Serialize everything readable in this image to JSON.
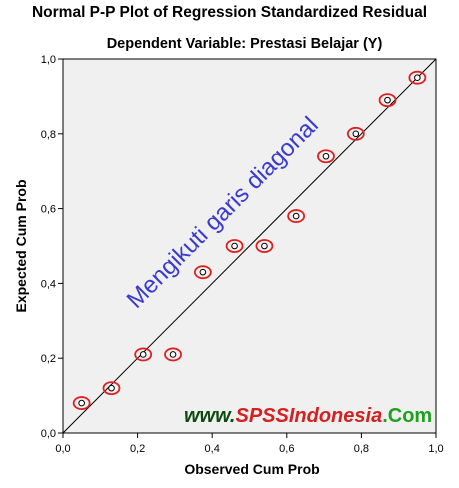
{
  "chart_data": {
    "type": "scatter",
    "title": "Normal P-P Plot of Regression Standardized Residual",
    "subtitle": "Dependent Variable: Prestasi Belajar (Y)",
    "xlabel": "Observed Cum Prob",
    "ylabel": "Expected Cum Prob",
    "xlim": [
      0,
      1
    ],
    "ylim": [
      0,
      1
    ],
    "x_ticks": [
      "0,0",
      "0,2",
      "0,4",
      "0,6",
      "0,8",
      "1,0"
    ],
    "y_ticks": [
      "0,0",
      "0,2",
      "0,4",
      "0,6",
      "0,8",
      "1,0"
    ],
    "grid": false,
    "reference_line": {
      "from": [
        0,
        0
      ],
      "to": [
        1,
        1
      ]
    },
    "points": [
      {
        "x": 0.05,
        "y": 0.08
      },
      {
        "x": 0.13,
        "y": 0.12
      },
      {
        "x": 0.215,
        "y": 0.21
      },
      {
        "x": 0.295,
        "y": 0.21
      },
      {
        "x": 0.375,
        "y": 0.43
      },
      {
        "x": 0.46,
        "y": 0.5
      },
      {
        "x": 0.54,
        "y": 0.5
      },
      {
        "x": 0.625,
        "y": 0.58
      },
      {
        "x": 0.705,
        "y": 0.74
      },
      {
        "x": 0.785,
        "y": 0.8
      },
      {
        "x": 0.87,
        "y": 0.89
      },
      {
        "x": 0.95,
        "y": 0.95
      }
    ],
    "annotations": {
      "diagonal_note": "Mengikuti garis diagonal",
      "watermark_prefix": "www.",
      "watermark_brand": "SPSSIndonesia",
      "watermark_suffix": ".Com"
    },
    "colors": {
      "plot_background": "#f0f0f0",
      "circle_highlight": "#e02020",
      "annotation_text": "#3a3ad0",
      "watermark_dark": "#104a10",
      "watermark_brand": "#d42020",
      "watermark_suffix": "#20a020"
    }
  }
}
